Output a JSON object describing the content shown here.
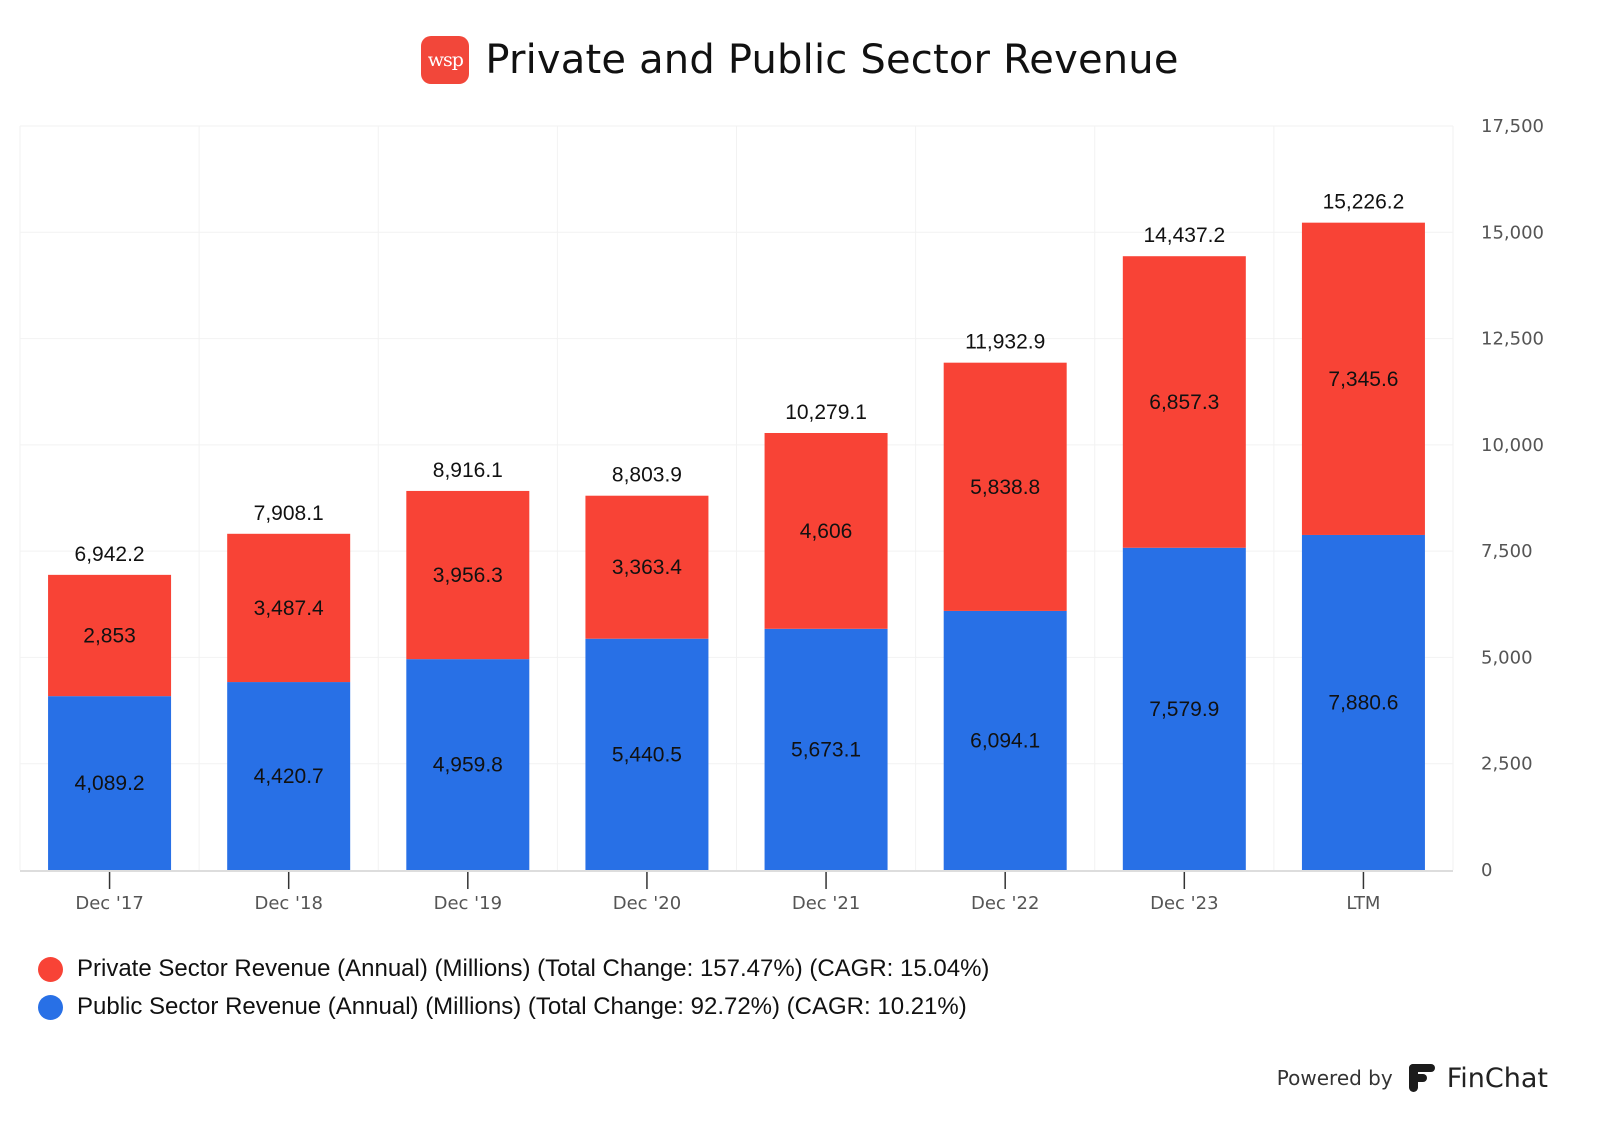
{
  "header": {
    "logo_text": "wsp",
    "title": "Private and Public Sector Revenue"
  },
  "colors": {
    "private": "#f84336",
    "public": "#2870e6",
    "logo": "#f2473a",
    "grid": "#f2f2f2",
    "axis": "#dddddd"
  },
  "chart_data": {
    "type": "bar",
    "stacked": true,
    "title": "Private and Public Sector Revenue",
    "xlabel": "",
    "ylabel": "",
    "categories": [
      "Dec '17",
      "Dec '18",
      "Dec '19",
      "Dec '20",
      "Dec '21",
      "Dec '22",
      "Dec '23",
      "LTM"
    ],
    "series": [
      {
        "name": "Public Sector Revenue (Annual) (Millions) (Total Change: 92.72%) (CAGR: 10.21%)",
        "key": "public",
        "values": [
          4089.2,
          4420.7,
          4959.8,
          5440.5,
          5673.1,
          6094.1,
          7579.9,
          7880.6
        ],
        "labels": [
          "4,089.2",
          "4,420.7",
          "4,959.8",
          "5,440.5",
          "5,673.1",
          "6,094.1",
          "7,579.9",
          "7,880.6"
        ]
      },
      {
        "name": "Private Sector Revenue (Annual) (Millions) (Total Change: 157.47%) (CAGR: 15.04%)",
        "key": "private",
        "values": [
          2853,
          3487.4,
          3956.3,
          3363.4,
          4606,
          5838.8,
          6857.3,
          7345.6
        ],
        "labels": [
          "2,853",
          "3,487.4",
          "3,956.3",
          "3,363.4",
          "4,606",
          "5,838.8",
          "6,857.3",
          "7,345.6"
        ]
      }
    ],
    "totals": [
      6942.2,
      7908.1,
      8916.1,
      8803.9,
      10279.1,
      11932.9,
      14437.2,
      15226.2
    ],
    "total_labels": [
      "6,942.2",
      "7,908.1",
      "8,916.1",
      "8,803.9",
      "10,279.1",
      "11,932.9",
      "14,437.2",
      "15,226.2"
    ],
    "ylim": [
      0,
      17500
    ],
    "yticks": [
      0,
      2500,
      5000,
      7500,
      10000,
      12500,
      15000,
      17500
    ],
    "ytick_labels": [
      "0",
      "2,500",
      "5,000",
      "7,500",
      "10,000",
      "12,500",
      "15,000",
      "17,500"
    ],
    "y_axis_side": "right",
    "grid": true,
    "legend_position": "bottom-left"
  },
  "legend": [
    {
      "label": "Private Sector Revenue (Annual) (Millions) (Total Change: 157.47%) (CAGR: 15.04%)",
      "color": "#f84336"
    },
    {
      "label": "Public Sector Revenue (Annual) (Millions) (Total Change: 92.72%) (CAGR: 10.21%)",
      "color": "#2870e6"
    }
  ],
  "footer": {
    "powered_by": "Powered by",
    "brand": "FinChat"
  }
}
